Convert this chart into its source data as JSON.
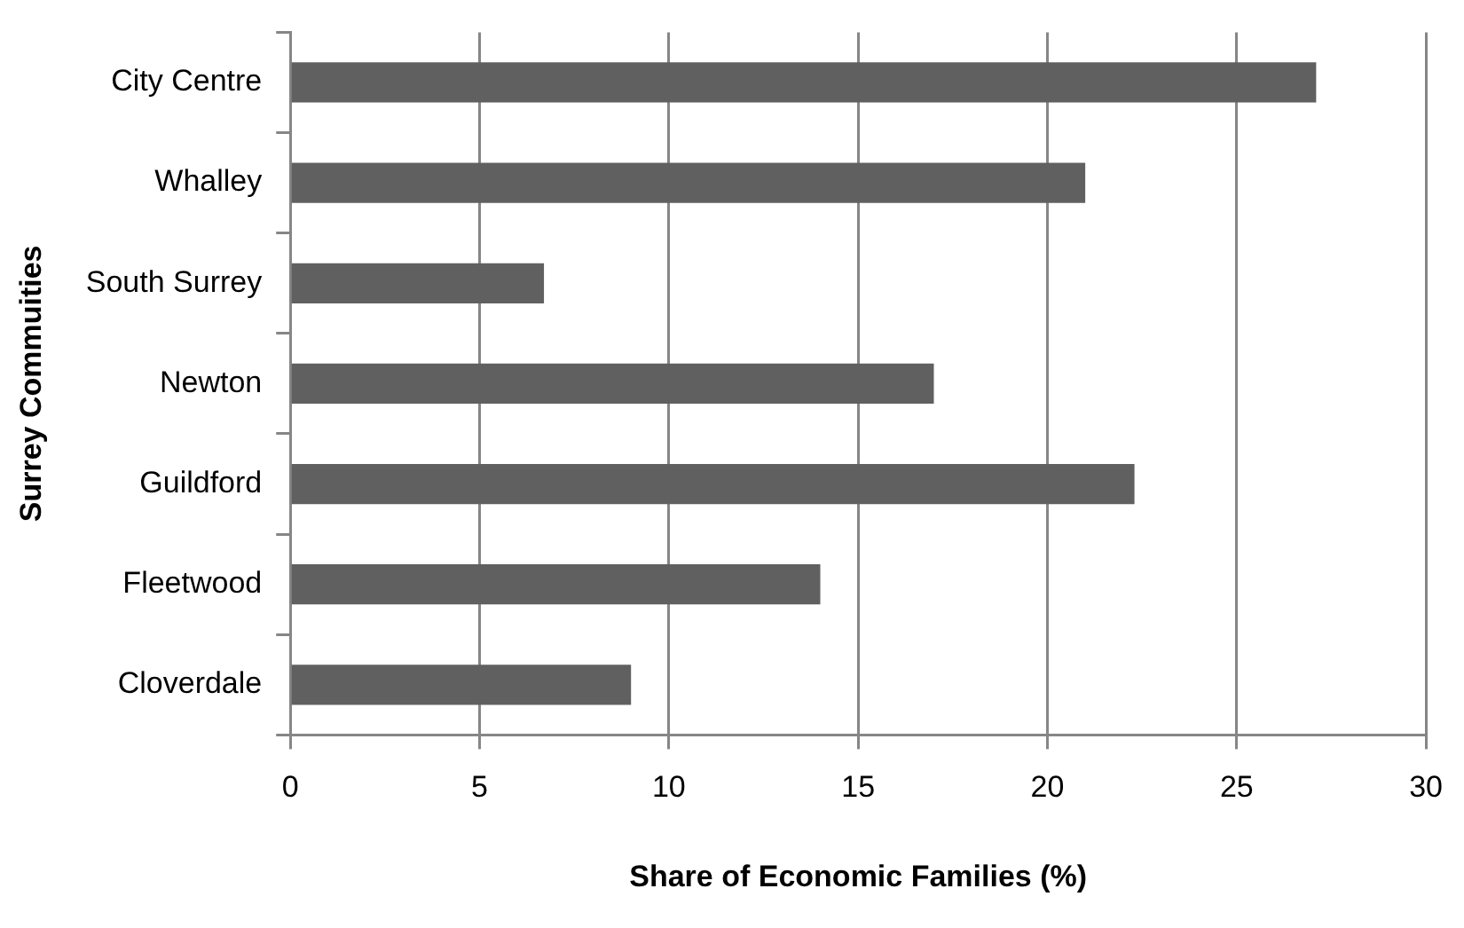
{
  "chart_data": {
    "type": "bar",
    "orientation": "horizontal",
    "xlabel": "Share of Economic Families (%)",
    "ylabel": "Surrey Commuities",
    "categories": [
      "City Centre",
      "Whalley",
      "South Surrey",
      "Newton",
      "Guildford",
      "Fleetwood",
      "Cloverdale"
    ],
    "values": [
      27.1,
      21.0,
      6.7,
      17.0,
      22.3,
      14.0,
      9.0
    ],
    "color": "#606060",
    "xlim": [
      0,
      30
    ],
    "xticks": [
      0,
      5,
      10,
      15,
      20,
      25,
      30
    ],
    "grid": "x",
    "legend": false
  }
}
